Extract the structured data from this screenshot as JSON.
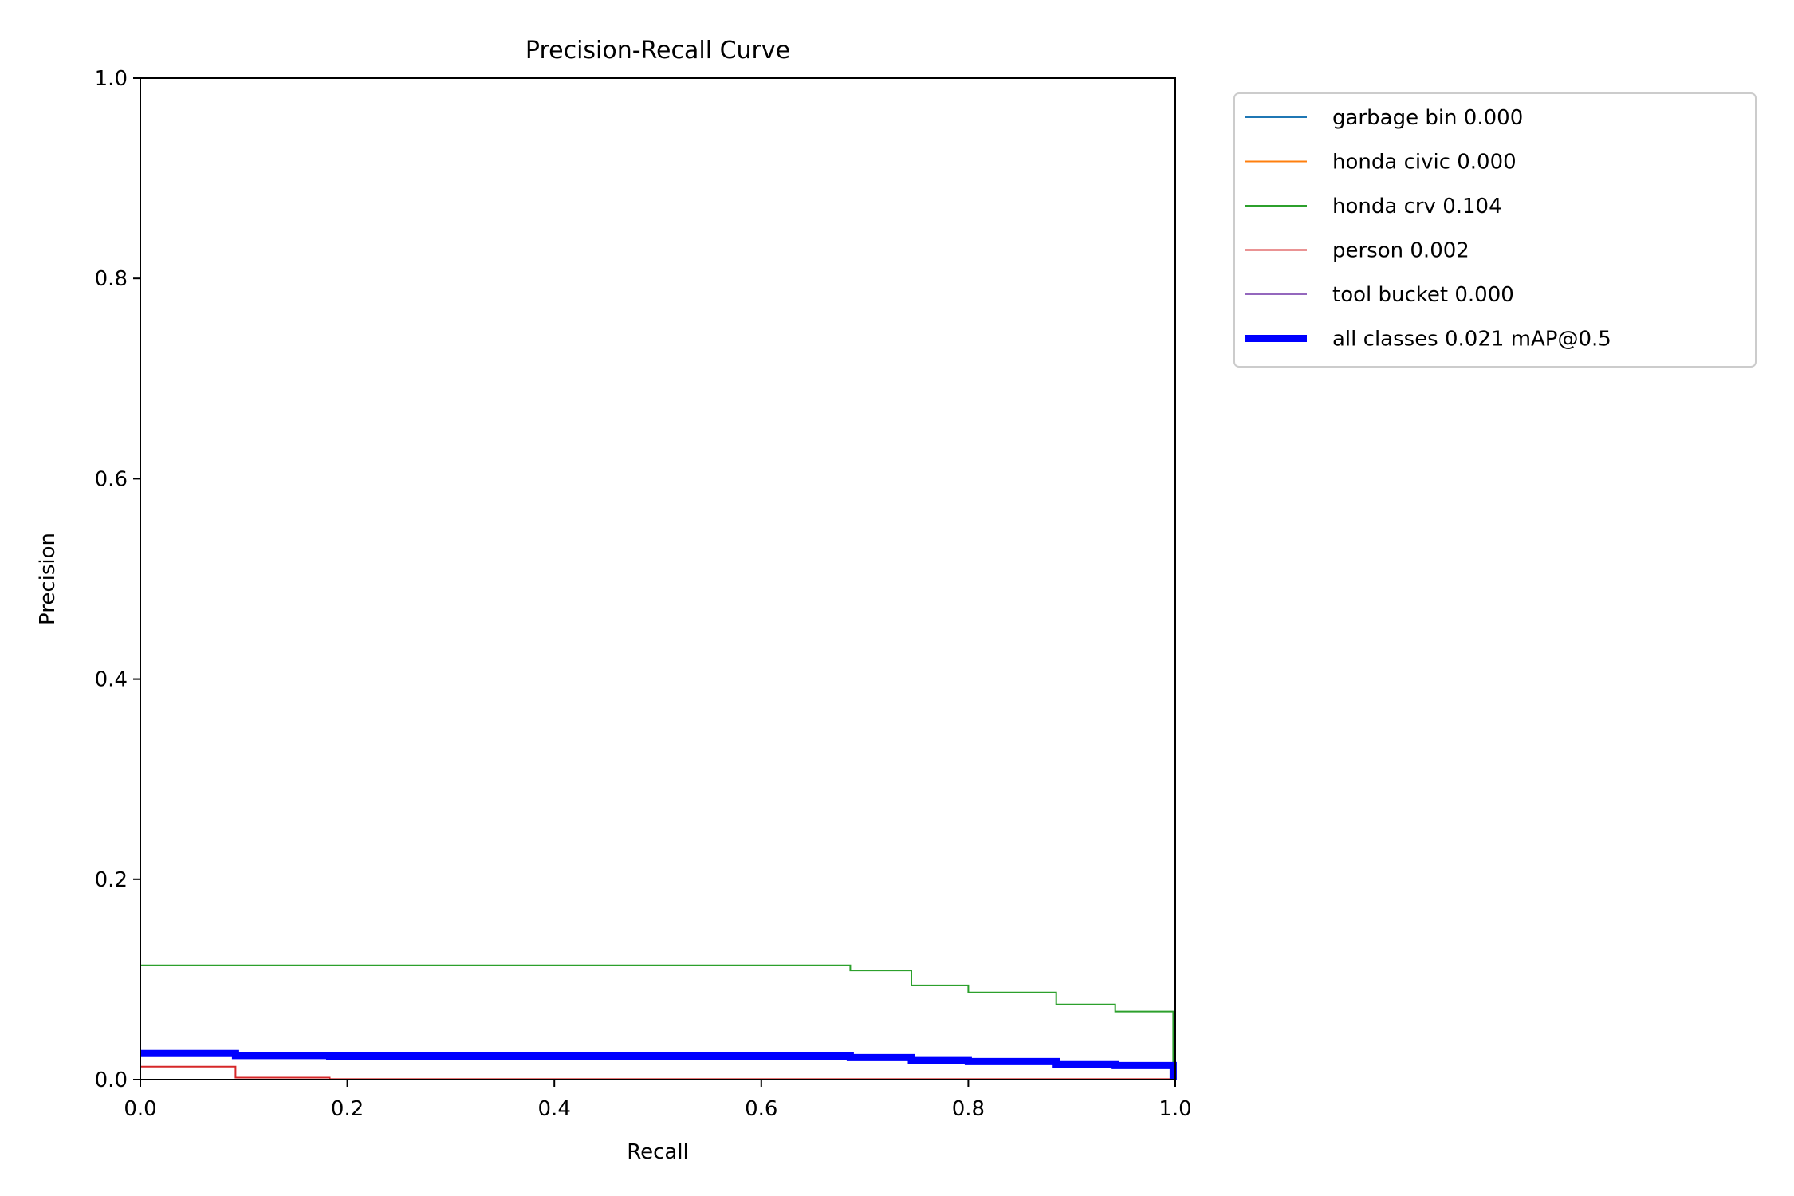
{
  "chart_data": {
    "type": "line",
    "title": "Precision-Recall Curve",
    "xlabel": "Recall",
    "ylabel": "Precision",
    "xlim": [
      0,
      1
    ],
    "ylim": [
      0,
      1
    ],
    "xticks": [
      "0.0",
      "0.2",
      "0.4",
      "0.6",
      "0.8",
      "1.0"
    ],
    "yticks": [
      "0.0",
      "0.2",
      "0.4",
      "0.6",
      "0.8",
      "1.0"
    ],
    "grid": false,
    "legend_position": "outside-top-right",
    "series": [
      {
        "name": "garbage bin 0.000",
        "color": "#1f77b4",
        "width": "thin",
        "x": [
          0,
          1
        ],
        "y": [
          0,
          0
        ]
      },
      {
        "name": "honda civic 0.000",
        "color": "#ff7f0e",
        "width": "thin",
        "x": [
          0,
          1
        ],
        "y": [
          0,
          0
        ]
      },
      {
        "name": "honda crv 0.104",
        "color": "#2ca02c",
        "width": "thin",
        "x": [
          0,
          0.686,
          0.686,
          0.745,
          0.745,
          0.8,
          0.8,
          0.885,
          0.885,
          0.942,
          0.942,
          0.998,
          0.998,
          1.0
        ],
        "y": [
          0.114,
          0.114,
          0.109,
          0.109,
          0.094,
          0.094,
          0.087,
          0.087,
          0.075,
          0.075,
          0.068,
          0.068,
          0.0,
          0.0
        ]
      },
      {
        "name": "person 0.002",
        "color": "#d62728",
        "width": "thin",
        "x": [
          0,
          0.092,
          0.092,
          0.183,
          0.183,
          1.0
        ],
        "y": [
          0.013,
          0.013,
          0.002,
          0.002,
          0.0005,
          0.0005
        ]
      },
      {
        "name": "tool bucket 0.000",
        "color": "#9467bd",
        "width": "thin",
        "x": [
          0,
          1
        ],
        "y": [
          0,
          0
        ]
      },
      {
        "name": "all classes 0.021 mAP@0.5",
        "color": "#0000ff",
        "width": "thick",
        "x": [
          0,
          0.092,
          0.092,
          0.183,
          0.183,
          0.686,
          0.686,
          0.745,
          0.745,
          0.8,
          0.8,
          0.885,
          0.885,
          0.942,
          0.942,
          0.998,
          0.998
        ],
        "y": [
          0.026,
          0.026,
          0.024,
          0.024,
          0.0235,
          0.0235,
          0.022,
          0.022,
          0.019,
          0.019,
          0.018,
          0.018,
          0.015,
          0.015,
          0.014,
          0.014,
          0.0
        ]
      }
    ]
  }
}
